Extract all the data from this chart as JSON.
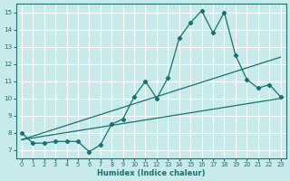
{
  "xlabel": "Humidex (Indice chaleur)",
  "xlim": [
    -0.5,
    23.5
  ],
  "ylim": [
    6.5,
    15.5
  ],
  "xticks": [
    0,
    1,
    2,
    3,
    4,
    5,
    6,
    7,
    8,
    9,
    10,
    11,
    12,
    13,
    14,
    15,
    16,
    17,
    18,
    19,
    20,
    21,
    22,
    23
  ],
  "yticks": [
    7,
    8,
    9,
    10,
    11,
    12,
    13,
    14,
    15
  ],
  "bg_color": "#c8eaea",
  "line_color": "#1a7070",
  "grid_color": "#ffffff",
  "curve1_x": [
    0,
    1,
    2,
    3,
    4,
    5,
    6,
    7,
    8,
    9,
    10,
    11,
    12,
    13,
    14,
    15,
    16,
    17,
    18,
    19,
    20,
    21,
    22,
    23
  ],
  "curve1_y": [
    8.0,
    7.4,
    7.4,
    7.5,
    7.5,
    7.5,
    6.9,
    7.3,
    8.5,
    8.8,
    10.1,
    11.0,
    10.0,
    11.2,
    13.5,
    14.4,
    15.1,
    13.8,
    15.0,
    12.5,
    11.1,
    10.6,
    10.8,
    10.1
  ],
  "curve2_x": [
    0,
    23
  ],
  "curve2_y": [
    7.6,
    12.4
  ],
  "curve3_x": [
    0,
    23
  ],
  "curve3_y": [
    7.6,
    10.0
  ],
  "figsize": [
    3.2,
    2.0
  ],
  "dpi": 100
}
